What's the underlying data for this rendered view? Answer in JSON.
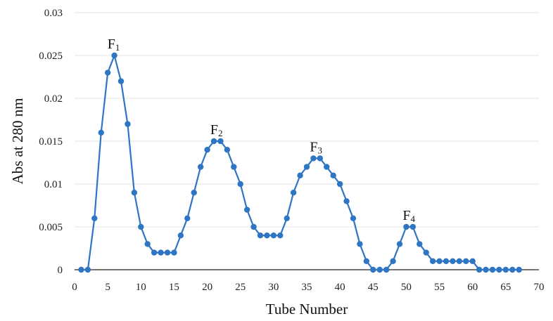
{
  "chart_data": {
    "type": "line",
    "xlabel": "Tube Number",
    "ylabel": "Abs at 280 nm",
    "xlim": [
      0,
      70
    ],
    "ylim": [
      0,
      0.03
    ],
    "x_ticks": [
      "0",
      "5",
      "10",
      "15",
      "20",
      "25",
      "30",
      "35",
      "40",
      "45",
      "50",
      "55",
      "60",
      "65",
      "70"
    ],
    "y_ticks": [
      "0",
      "0.005",
      "0.01",
      "0.015",
      "0.02",
      "0.025",
      "0.03"
    ],
    "grid": true,
    "legend": "none",
    "series_color": "#2e75c4",
    "series": [
      {
        "x": [
          1,
          2,
          3,
          4,
          5,
          6,
          7,
          8,
          9,
          10,
          11,
          12,
          13,
          14,
          15,
          16,
          17,
          18,
          19,
          20,
          21,
          22,
          23,
          24,
          25,
          26,
          27,
          28,
          29,
          30,
          31,
          32,
          33,
          34,
          35,
          36,
          37,
          38,
          39,
          40,
          41,
          42,
          43,
          44,
          45,
          46,
          47,
          48,
          49,
          50,
          51,
          52,
          53,
          54,
          55,
          56,
          57,
          58,
          59,
          60,
          61,
          62,
          63,
          64,
          65,
          66,
          67
        ],
        "values": [
          0,
          0,
          0.006,
          0.016,
          0.023,
          0.025,
          0.022,
          0.017,
          0.009,
          0.005,
          0.003,
          0.002,
          0.002,
          0.002,
          0.002,
          0.004,
          0.006,
          0.009,
          0.012,
          0.014,
          0.015,
          0.015,
          0.014,
          0.012,
          0.01,
          0.007,
          0.005,
          0.004,
          0.004,
          0.004,
          0.004,
          0.006,
          0.009,
          0.011,
          0.012,
          0.013,
          0.013,
          0.012,
          0.011,
          0.01,
          0.008,
          0.006,
          0.003,
          0.001,
          0,
          0,
          0,
          0.001,
          0.003,
          0.005,
          0.005,
          0.003,
          0.002,
          0.001,
          0.001,
          0.001,
          0.001,
          0.001,
          0.001,
          0.001,
          0,
          0,
          0,
          0,
          0,
          0,
          0
        ]
      }
    ],
    "annotations": [
      {
        "letter": "F",
        "sub": "1",
        "x": 6,
        "y": 0.025
      },
      {
        "letter": "F",
        "sub": "2",
        "x": 21.5,
        "y": 0.015
      },
      {
        "letter": "F",
        "sub": "3",
        "x": 36.5,
        "y": 0.013
      },
      {
        "letter": "F",
        "sub": "4",
        "x": 50.5,
        "y": 0.005
      }
    ]
  }
}
